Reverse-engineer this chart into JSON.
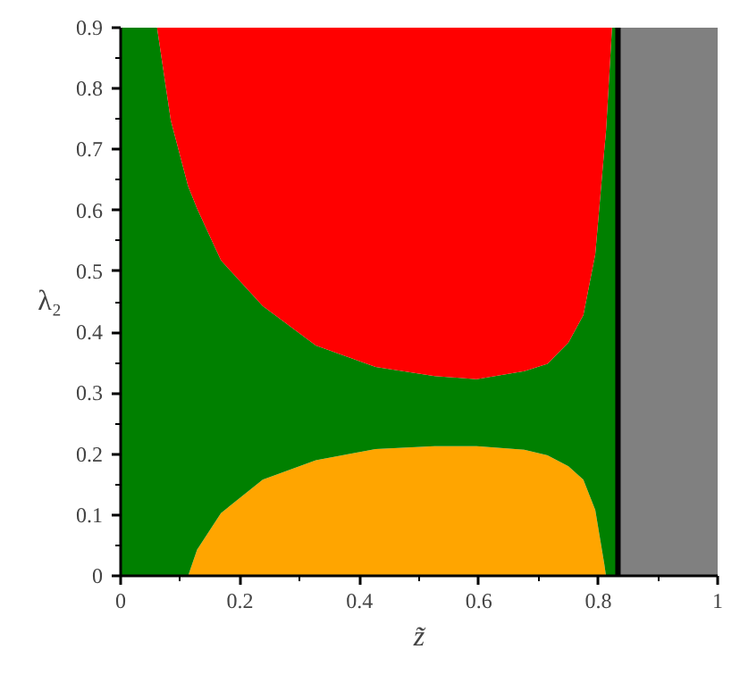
{
  "chart_data": {
    "type": "area",
    "stacked": true,
    "xlabel": "z̃",
    "ylabel": "λ₂",
    "xlim": [
      0,
      1
    ],
    "ylim": [
      0,
      0.9
    ],
    "xticks": [
      0,
      0.2,
      0.4,
      0.6,
      0.8,
      1
    ],
    "yticks": [
      0,
      0.1,
      0.2,
      0.3,
      0.4,
      0.5,
      0.6,
      0.7,
      0.8,
      0.9
    ],
    "x": [
      0,
      0.061,
      0.084,
      0.113,
      0.128,
      0.168,
      0.238,
      0.327,
      0.427,
      0.526,
      0.596,
      0.676,
      0.715,
      0.75,
      0.775,
      0.795,
      0.81,
      0.813,
      0.82,
      0.823,
      0.833
    ],
    "bands": [
      {
        "axis": "x",
        "from": 0.833,
        "to": 1,
        "color": "#808080"
      }
    ],
    "ref_lines": [
      {
        "axis": "x",
        "value": 0.833,
        "color": "#000000",
        "line_style": "solid"
      }
    ],
    "series": [
      {
        "color": "#ffa500",
        "values": [
          0,
          0,
          0,
          0,
          0.043,
          0.103,
          0.158,
          0.19,
          0.208,
          0.213,
          0.213,
          0.207,
          0.198,
          0.18,
          0.158,
          0.108,
          0.02,
          0,
          0,
          0,
          0
        ]
      },
      {
        "color": "#008000",
        "values": [
          0.9,
          0.9,
          0.748,
          0.64,
          0.56,
          0.415,
          0.285,
          0.188,
          0.135,
          0.115,
          0.11,
          0.129,
          0.15,
          0.203,
          0.27,
          0.42,
          0.678,
          0.73,
          0.848,
          0.9,
          0.9
        ]
      },
      {
        "color": "#ff0000",
        "values": [
          0,
          0,
          0.152,
          0.26,
          0.297,
          0.382,
          0.457,
          0.522,
          0.557,
          0.572,
          0.577,
          0.564,
          0.552,
          0.517,
          0.472,
          0.372,
          0.202,
          0.17,
          0.052,
          0,
          0
        ]
      }
    ]
  }
}
